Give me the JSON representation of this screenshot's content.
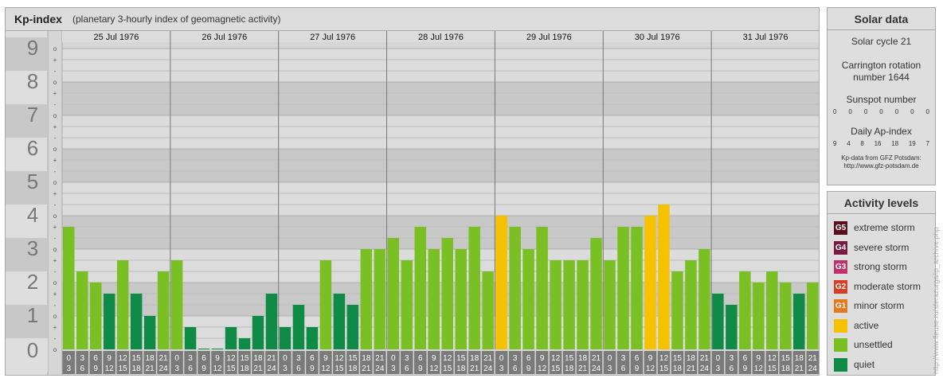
{
  "header": {
    "title": "Kp-index",
    "subtitle": "(planetary 3-hourly index of geomagnetic activity)"
  },
  "chart_data": {
    "type": "bar",
    "title": "Kp-index",
    "ylim": [
      0,
      9
    ],
    "y_ticks": [
      "0",
      "1",
      "2",
      "3",
      "4",
      "5",
      "6",
      "7",
      "8",
      "9"
    ],
    "sub_ticks": [
      "+",
      "o",
      "-"
    ],
    "days": [
      "25 Jul 1976",
      "26 Jul 1976",
      "27 Jul 1976",
      "28 Jul 1976",
      "29 Jul 1976",
      "30 Jul 1976",
      "31 Jul 1976"
    ],
    "interval_labels": [
      [
        "0",
        "3"
      ],
      [
        "3",
        "6"
      ],
      [
        "6",
        "9"
      ],
      [
        "9",
        "12"
      ],
      [
        "12",
        "15"
      ],
      [
        "15",
        "18"
      ],
      [
        "18",
        "21"
      ],
      [
        "21",
        "24"
      ]
    ],
    "series": [
      {
        "values": [
          3.667,
          2.333,
          2.0,
          1.667,
          2.667,
          1.667,
          1.0,
          2.333,
          2.667,
          0.667,
          0.0,
          0.0,
          0.667,
          0.333,
          1.0,
          1.667,
          0.667,
          1.333,
          0.667,
          2.667,
          1.667,
          1.333,
          3.0,
          3.0,
          3.333,
          2.667,
          3.667,
          3.0,
          3.333,
          3.0,
          3.667,
          2.333,
          4.0,
          3.667,
          3.0,
          3.667,
          2.667,
          2.667,
          2.667,
          3.333,
          2.667,
          3.667,
          3.667,
          4.0,
          4.333,
          2.333,
          2.667,
          3.0,
          1.667,
          1.333,
          2.333,
          2.0,
          2.333,
          2.0,
          1.667,
          2.0
        ]
      }
    ]
  },
  "colors": {
    "g5": "#5a0f1e",
    "g4": "#7a1a44",
    "g3": "#c0306d",
    "g2": "#d73e23",
    "g1": "#e8781d",
    "active": "#f6c200",
    "unsettled": "#7abf24",
    "quiet": "#0f8a47"
  },
  "solar": {
    "title": "Solar data",
    "cycle": "Solar cycle 21",
    "carrington": "Carrington rotation number 1644",
    "sunspot_label": "Sunspot number",
    "sunspot_values": [
      "0",
      "0",
      "0",
      "0",
      "0",
      "0",
      "0"
    ],
    "ap_label": "Daily Ap-index",
    "ap_values": [
      "9",
      "4",
      "8",
      "16",
      "18",
      "19",
      "7"
    ],
    "credit_line1": "Kp-data from GFZ Potsdam:",
    "credit_line2": "http://www.gfz-potsdam.de"
  },
  "activity": {
    "title": "Activity levels",
    "items": [
      {
        "code": "G5",
        "label": "extreme storm",
        "color": "#5a0f1e"
      },
      {
        "code": "G4",
        "label": "severe storm",
        "color": "#7a1a44"
      },
      {
        "code": "G3",
        "label": "strong storm",
        "color": "#c0306d"
      },
      {
        "code": "G2",
        "label": "moderate storm",
        "color": "#d73e23"
      },
      {
        "code": "G1",
        "label": "minor storm",
        "color": "#e8781d"
      },
      {
        "code": "",
        "label": "active",
        "color": "#f6c200"
      },
      {
        "code": "",
        "label": "unsettled",
        "color": "#7abf24"
      },
      {
        "code": "",
        "label": "quiet",
        "color": "#0f8a47"
      }
    ]
  },
  "watermark": "http://www.fleuse.ru/sferazurga/ip_archive.php"
}
